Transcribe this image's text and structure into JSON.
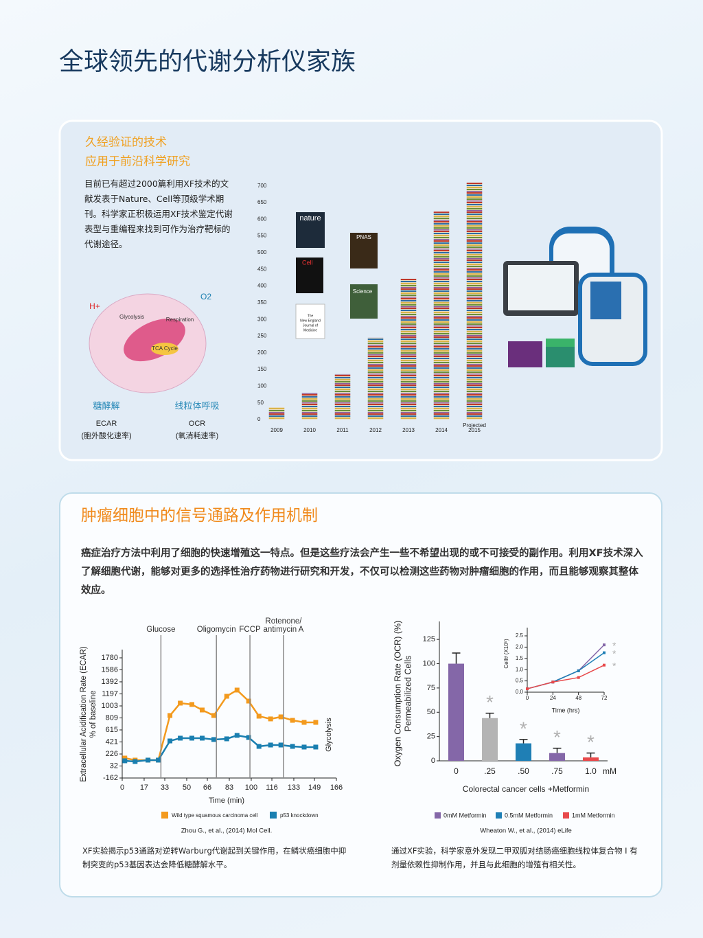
{
  "page_title": "全球领先的代谢分析仪家族",
  "intro": {
    "heading": [
      "久经验证的技术",
      "应用于前沿科学研究"
    ],
    "body": "目前已有超过2000篇利用XF技术的文献发表于Nature、Cell等顶级学术期刊。科学家正积极运用XF技术鉴定代谢表型与重编程来找到可作为治疗靶标的代谢途径。"
  },
  "cell_diagram": {
    "labels": [
      "H+",
      "O2",
      "Glycolysis",
      "Respiration",
      "TCA Cycle"
    ],
    "pathways": [
      {
        "name": "糖酵解",
        "metric": "ECAR",
        "metric_desc": "(胞外酸化速率)"
      },
      {
        "name": "线粒体呼吸",
        "metric": "OCR",
        "metric_desc": "(氧消耗速率)"
      }
    ]
  },
  "journals": [
    "nature",
    "Cell",
    [
      "The",
      "New England",
      "Journal of",
      "Medicine"
    ],
    "PNAS",
    "Science"
  ],
  "publications_chart": {
    "type": "bar",
    "categories": [
      "2009",
      "2010",
      "2011",
      "2012",
      "2013",
      "2014",
      "2015"
    ],
    "category_note": "Projected",
    "values": [
      37,
      80,
      136,
      245,
      422,
      623,
      710
    ],
    "ylim": [
      0,
      720
    ],
    "yticks": [
      0,
      50,
      100,
      150,
      200,
      250,
      300,
      350,
      400,
      450,
      500,
      550,
      600,
      650,
      700
    ]
  },
  "section2": {
    "title": "肿瘤细胞中的信号通路及作用机制",
    "body": "癌症治疗方法中利用了细胞的快速增殖这一特点。但是这些疗法会产生一些不希望出现的或不可接受的副作用。利用XF技术深入了解细胞代谢，能够对更多的选择性治疗药物进行研究和开发，不仅可以检测这些药物对肿瘤细胞的作用，而且能够观察其整体效应。"
  },
  "ecar_chart": {
    "type": "line",
    "ylabel": [
      "Extracellular Acidification Rate (ECAR)",
      "% of baseline"
    ],
    "xlabel": "Time (min)",
    "side_label": "Glycolysis",
    "injections": [
      {
        "label": [
          "Glucose"
        ],
        "x": 30
      },
      {
        "label": [
          "Oligomycin"
        ],
        "x": 73
      },
      {
        "label": [
          "FCCP"
        ],
        "x": 99
      },
      {
        "label": [
          "Rotenone/",
          "antimycin A"
        ],
        "x": 125
      }
    ],
    "x": [
      2,
      10,
      20,
      28,
      37,
      45,
      54,
      62,
      71,
      81,
      89,
      98,
      106,
      115,
      123,
      132,
      141,
      150
    ],
    "series": [
      {
        "name": "Wild type squamous carcinoma cell",
        "color": "#f39a1e",
        "values": [
          160,
          127,
          127,
          127,
          848,
          1048,
          1026,
          937,
          848,
          1159,
          1259,
          1081,
          837,
          793,
          826,
          770,
          737,
          737
        ]
      },
      {
        "name": "p53 knockdown",
        "color": "#1a7fb0",
        "values": [
          116,
          104,
          127,
          127,
          437,
          482,
          482,
          482,
          460,
          471,
          527,
          493,
          349,
          371,
          371,
          349,
          338,
          338
        ]
      }
    ],
    "xlim": [
      0,
      166
    ],
    "xticks": [
      0,
      17,
      33,
      50,
      66,
      83,
      100,
      116,
      133,
      149,
      166
    ],
    "ylim": [
      -162,
      1780
    ],
    "yticks": [
      -162,
      32,
      226,
      421,
      615,
      809,
      1003,
      1197,
      1392,
      1586,
      1780
    ],
    "citation": "Zhou G., et al., (2014) Mol Cell.",
    "caption": "XF实验揭示p53通路对逆转Warburg代谢起到关键作用，在鳞状癌细胞中抑制突变的p53基因表达会降低糖酵解水平。"
  },
  "ocr_chart": {
    "type": "bar",
    "ylabel": [
      "Oxygen Consumption Rate (OCR) (%)",
      "Permeabilized Cells"
    ],
    "xlabel": "Colorectal cancer cells  +Metformin",
    "x_unit": "mM",
    "categories": [
      "0",
      ".25",
      ".50",
      ".75",
      "1.0"
    ],
    "values": [
      100,
      44,
      18,
      8,
      3.5
    ],
    "errors": [
      11,
      5,
      4,
      5,
      4.5
    ],
    "colors": [
      "#8467a8",
      "#b4b4b4",
      "#1f7fb5",
      "#8467a8",
      "#e8494b"
    ],
    "significant": [
      false,
      true,
      true,
      true,
      true
    ],
    "significance_label": "*",
    "ylim": [
      0,
      135
    ],
    "yticks": [
      0,
      25,
      50,
      75,
      100,
      125
    ],
    "legend": [
      {
        "name": "0mM Metformin",
        "color": "#8467a8"
      },
      {
        "name": "0.5mM Metformin",
        "color": "#1f7fb5"
      },
      {
        "name": "1mM Metformin",
        "color": "#e8494b"
      }
    ],
    "citation": "Wheaton W., et al., (2014) eLife",
    "caption": "通过XF实验，科学家意外发现二甲双胍对结肠癌细胞线粒体复合物 I 有剂量依赖性抑制作用，并且与此细胞的增殖有相关性。"
  },
  "inset_chart": {
    "type": "line",
    "ylabel": "Cell# (X10⁵)",
    "xlabel": "Time (hrs)",
    "x": [
      0,
      24,
      48,
      72
    ],
    "series": [
      {
        "name": "0mM Metformin",
        "color": "#8467a8",
        "values": [
          0.15,
          0.45,
          0.95,
          2.1
        ]
      },
      {
        "name": "0.5mM Metformin",
        "color": "#1f7fb5",
        "values": [
          0.15,
          0.45,
          0.95,
          1.75
        ]
      },
      {
        "name": "1mM Metformin",
        "color": "#e8494b",
        "values": [
          0.15,
          0.45,
          0.65,
          1.2
        ]
      }
    ],
    "xlim": [
      0,
      72
    ],
    "xticks": [
      0,
      24,
      48,
      72
    ],
    "ylim": [
      0,
      2.5
    ],
    "yticks": [
      {
        "value": 0,
        "label": "0.0"
      },
      0.5,
      {
        "value": 1,
        "label": "1.0"
      },
      1.5,
      {
        "value": 2,
        "label": "2.0"
      },
      2.5
    ],
    "significance_label": "*"
  }
}
